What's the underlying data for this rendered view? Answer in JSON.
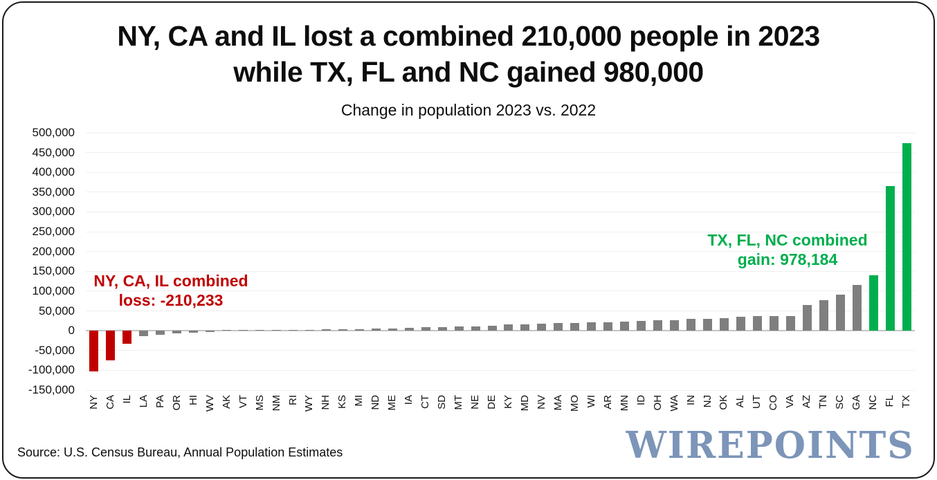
{
  "header": {
    "title_line1": "NY, CA and IL lost a combined 210,000 people in 2023",
    "title_line2": "while TX, FL and NC gained 980,000",
    "subtitle": "Change in population 2023 vs. 2022"
  },
  "annotations": {
    "loss_line1": "NY, CA, IL combined",
    "loss_line2": "loss: -210,233",
    "gain_line1": "TX, FL, NC combined",
    "gain_line2": "gain: 978,184"
  },
  "footer": {
    "source": "Source: U.S. Census Bureau, Annual Population Estimates",
    "logo": "WIREPOINTS"
  },
  "colors": {
    "loss": "#c00000",
    "gain": "#00ae4d",
    "neutral": "#7f7f7f",
    "logo": "#7c95b8",
    "gridline": "#efefef",
    "zero_line": "#c4c4c4"
  },
  "chart_data": {
    "type": "bar",
    "title": "NY, CA and IL lost a combined 210,000 people in 2023 while TX, FL and NC gained 980,000",
    "subtitle": "Change in population 2023 vs. 2022",
    "xlabel": "",
    "ylabel": "",
    "ylim": [
      -150000,
      500000
    ],
    "ytick_step": 50000,
    "grid": true,
    "legend": false,
    "categories": [
      "NY",
      "CA",
      "IL",
      "LA",
      "PA",
      "OR",
      "HI",
      "WV",
      "AK",
      "VT",
      "MS",
      "NM",
      "RI",
      "WY",
      "NH",
      "KS",
      "MI",
      "ND",
      "ME",
      "IA",
      "CT",
      "SD",
      "MT",
      "NE",
      "DE",
      "KY",
      "MD",
      "NV",
      "MA",
      "MO",
      "WI",
      "AR",
      "MN",
      "ID",
      "OH",
      "WA",
      "IN",
      "NJ",
      "OK",
      "AL",
      "UT",
      "CO",
      "VA",
      "AZ",
      "TN",
      "SC",
      "GA",
      "NC",
      "FL",
      "TX"
    ],
    "values": [
      -101984,
      -75423,
      -32826,
      -14274,
      -10408,
      -6021,
      -4261,
      -3964,
      130,
      400,
      760,
      900,
      2100,
      2350,
      3300,
      3830,
      3980,
      5100,
      6200,
      7500,
      8500,
      9400,
      11000,
      11600,
      12400,
      15300,
      16300,
      17800,
      18700,
      19800,
      20400,
      21300,
      23600,
      24200,
      26200,
      26800,
      29900,
      30000,
      32000,
      34500,
      36500,
      36600,
      36700,
      65660,
      77513,
      90600,
      116077,
      139526,
      365205,
      473453
    ],
    "bar_color_rules": {
      "loss_states": [
        "NY",
        "CA",
        "IL"
      ],
      "gain_states": [
        "NC",
        "FL",
        "TX"
      ],
      "loss_color": "#c00000",
      "gain_color": "#00ae4d",
      "default_color": "#7f7f7f"
    },
    "annotations": [
      {
        "text": "NY, CA, IL combined loss: -210,233",
        "color": "#c00000",
        "position": "left-middle"
      },
      {
        "text": "TX, FL, NC combined gain: 978,184",
        "color": "#00ae4d",
        "position": "right-upper"
      }
    ]
  }
}
